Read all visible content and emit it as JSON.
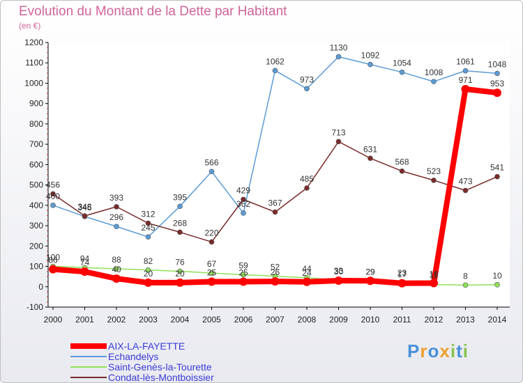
{
  "chart_data": {
    "type": "line",
    "title": "Evolution du Montant de la Dette par Habitant",
    "subtitle": "(en €)",
    "x": [
      "2000",
      "2001",
      "2002",
      "2003",
      "2004",
      "2005",
      "2006",
      "2007",
      "2008",
      "2009",
      "2010",
      "2011",
      "2012",
      "2013",
      "2014"
    ],
    "ylim": [
      -100,
      1200
    ],
    "yticks": [
      -100,
      0,
      100,
      200,
      300,
      400,
      500,
      600,
      700,
      800,
      900,
      1000,
      1100,
      1200
    ],
    "grid": false,
    "legend_position": "bottom-left",
    "series": [
      {
        "name": "AIX-LA-FAYETTE",
        "color": "#ff0000",
        "values": [
          86,
          74,
          40,
          20,
          20,
          25,
          25,
          26,
          24,
          30,
          29,
          17,
          18,
          971,
          953
        ]
      },
      {
        "name": "Echandelys",
        "color": "#5b9bd5",
        "values": [
          400,
          345,
          296,
          245,
          395,
          566,
          362,
          1062,
          973,
          1130,
          1092,
          1054,
          1008,
          1061,
          1048
        ]
      },
      {
        "name": "Saint-Genès-la-Tourette",
        "color": "#90e05a",
        "values": [
          100,
          94,
          88,
          82,
          76,
          67,
          59,
          52,
          44,
          33,
          29,
          23,
          11,
          8,
          10
        ]
      },
      {
        "name": "Condat-lès-Montboissier",
        "color": "#7a2a2a",
        "values": [
          456,
          348,
          393,
          312,
          268,
          220,
          429,
          367,
          485,
          713,
          631,
          568,
          523,
          473,
          541
        ]
      }
    ]
  },
  "logo": {
    "letters": [
      "P",
      "r",
      "o",
      "x",
      "i",
      "t",
      "i"
    ],
    "colors": [
      "#4a90d9",
      "#f0a030",
      "#4a90d9",
      "#f0a030",
      "#8bc34a",
      "#4a90d9",
      "#8bc34a"
    ]
  }
}
